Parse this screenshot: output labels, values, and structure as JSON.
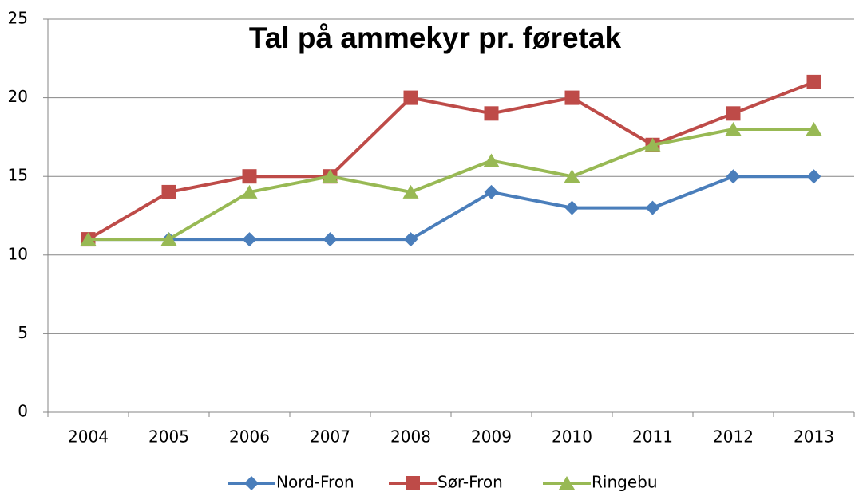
{
  "chart_data": {
    "type": "line",
    "title": "Tal på ammekyr pr. føretak",
    "categories": [
      "2004",
      "2005",
      "2006",
      "2007",
      "2008",
      "2009",
      "2010",
      "2011",
      "2012",
      "2013"
    ],
    "series": [
      {
        "name": "Nord-Fron",
        "color": "#4a7ebb",
        "marker": "diamond",
        "values": [
          11,
          11,
          11,
          11,
          11,
          14,
          13,
          13,
          15,
          15
        ]
      },
      {
        "name": "Sør-Fron",
        "color": "#be4b48",
        "marker": "square",
        "values": [
          11,
          14,
          15,
          15,
          20,
          19,
          20,
          17,
          19,
          21
        ]
      },
      {
        "name": "Ringebu",
        "color": "#98b954",
        "marker": "triangle",
        "values": [
          11,
          11,
          14,
          15,
          14,
          16,
          15,
          17,
          18,
          18
        ]
      }
    ],
    "ylim": [
      0,
      25
    ],
    "yticks": [
      0,
      5,
      10,
      15,
      20,
      25
    ],
    "grid": true,
    "legend": "bottom"
  }
}
